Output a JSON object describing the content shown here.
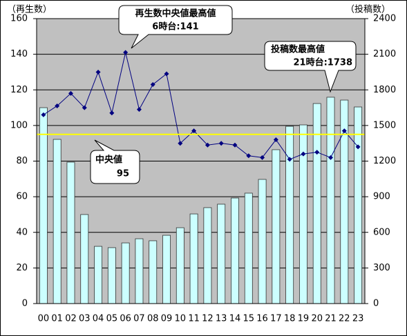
{
  "chart_data": {
    "type": "bar-line",
    "y_label": "（再生数）",
    "y2_label": "（投稿数）",
    "categories": [
      "00",
      "01",
      "02",
      "03",
      "04",
      "05",
      "06",
      "07",
      "08",
      "09",
      "10",
      "11",
      "12",
      "13",
      "14",
      "15",
      "16",
      "17",
      "18",
      "19",
      "20",
      "21",
      "22",
      "23"
    ],
    "series": [
      {
        "type": "bar",
        "axis": "y2",
        "color": "#ccffff",
        "values": [
          1650,
          1383,
          1191,
          750,
          482,
          471,
          511,
          546,
          529,
          575,
          639,
          755,
          808,
          837,
          889,
          930,
          1046,
          1296,
          1493,
          1505,
          1685,
          1738,
          1714,
          1656
        ]
      },
      {
        "type": "line",
        "axis": "y",
        "color": "#000080",
        "values": [
          106,
          111,
          118,
          110,
          130,
          107,
          141,
          109,
          123,
          129,
          90,
          97,
          89,
          90,
          89,
          83,
          82,
          92,
          81,
          84,
          85,
          82,
          97,
          88
        ]
      }
    ],
    "median_line": {
      "value": 95,
      "color": "#ffff00"
    },
    "annotations": [
      {
        "title": "再生数中央値最高値",
        "text": "6時台:141"
      },
      {
        "title": "投稿数最高値",
        "text": "21時台:1738"
      },
      {
        "title": "中央値"
      }
    ],
    "ylim": [
      0,
      160
    ],
    "yticks": [
      0,
      20,
      40,
      60,
      80,
      100,
      120,
      140,
      160
    ],
    "y2lim": [
      0,
      2400
    ],
    "y2ticks": [
      0,
      300,
      600,
      900,
      1200,
      1500,
      1800,
      2100,
      2400
    ],
    "grid": true
  }
}
